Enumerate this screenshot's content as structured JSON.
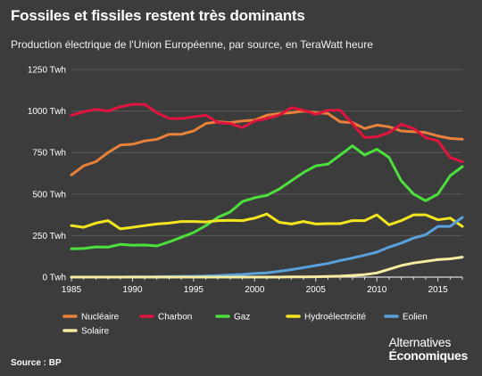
{
  "title": "Fossiles et fissiles restent très dominants",
  "subtitle": "Production électrique de l'Union Européenne, par source, en TeraWatt heure",
  "source": "Source : BP",
  "brand": {
    "line1": "Alternatives",
    "line2": "Économiques"
  },
  "chart_data": {
    "type": "line",
    "x": [
      1985,
      1986,
      1987,
      1988,
      1989,
      1990,
      1991,
      1992,
      1993,
      1994,
      1995,
      1996,
      1997,
      1998,
      1999,
      2000,
      2001,
      2002,
      2003,
      2004,
      2005,
      2006,
      2007,
      2008,
      2009,
      2010,
      2011,
      2012,
      2013,
      2014,
      2015,
      2016,
      2017
    ],
    "xticks": [
      1985,
      1990,
      1995,
      2000,
      2005,
      2010,
      2015
    ],
    "xtick_labels": [
      "1985",
      "1990",
      "1995",
      "2000",
      "2005",
      "2010",
      "2015"
    ],
    "ylim": [
      0,
      1250
    ],
    "yticks": [
      0,
      250,
      500,
      750,
      1000,
      1250
    ],
    "ytick_labels": [
      "0 Twh",
      "250 Twh",
      "500 Twh",
      "750 Twh",
      "1000 Twh",
      "1250 Twh"
    ],
    "grid": true,
    "legend_position": "bottom",
    "series": [
      {
        "name": "Nucléaire",
        "color": "#e8813a",
        "values": [
          615,
          670,
          695,
          750,
          795,
          800,
          820,
          830,
          860,
          860,
          880,
          925,
          935,
          930,
          940,
          945,
          975,
          985,
          990,
          1000,
          990,
          985,
          935,
          930,
          895,
          915,
          905,
          880,
          875,
          870,
          850,
          835,
          830
        ]
      },
      {
        "name": "Charbon",
        "color": "#e0143c",
        "values": [
          975,
          995,
          1010,
          1000,
          1025,
          1040,
          1040,
          990,
          955,
          955,
          965,
          975,
          930,
          925,
          900,
          940,
          955,
          975,
          1020,
          1005,
          980,
          1005,
          1005,
          925,
          840,
          845,
          870,
          920,
          895,
          840,
          820,
          720,
          695
        ]
      },
      {
        "name": "Gaz",
        "color": "#4ce03c",
        "values": [
          170,
          172,
          182,
          180,
          197,
          192,
          193,
          188,
          212,
          240,
          268,
          310,
          360,
          392,
          455,
          478,
          492,
          530,
          580,
          630,
          670,
          680,
          735,
          790,
          735,
          770,
          720,
          580,
          500,
          460,
          500,
          610,
          665
        ]
      },
      {
        "name": "Hydroélectricité",
        "color": "#f4e61e",
        "values": [
          310,
          300,
          325,
          340,
          290,
          300,
          310,
          320,
          325,
          335,
          335,
          332,
          340,
          342,
          340,
          355,
          380,
          330,
          320,
          335,
          320,
          322,
          322,
          340,
          340,
          375,
          315,
          340,
          375,
          375,
          345,
          355,
          305
        ]
      },
      {
        "name": "Eolien",
        "color": "#5aa0dc",
        "values": [
          0,
          0,
          0,
          0,
          0,
          1,
          1,
          2,
          3,
          4,
          5,
          7,
          9,
          13,
          16,
          22,
          26,
          35,
          45,
          57,
          70,
          82,
          100,
          115,
          132,
          150,
          180,
          205,
          235,
          255,
          305,
          305,
          360
        ]
      },
      {
        "name": "Solaire",
        "color": "#f8eca0",
        "values": [
          0,
          0,
          0,
          0,
          0,
          0,
          0,
          0,
          0,
          0,
          0,
          0,
          0,
          0,
          0,
          0,
          0,
          0,
          1,
          1,
          2,
          4,
          6,
          10,
          15,
          25,
          47,
          70,
          85,
          95,
          105,
          110,
          120
        ]
      }
    ]
  }
}
